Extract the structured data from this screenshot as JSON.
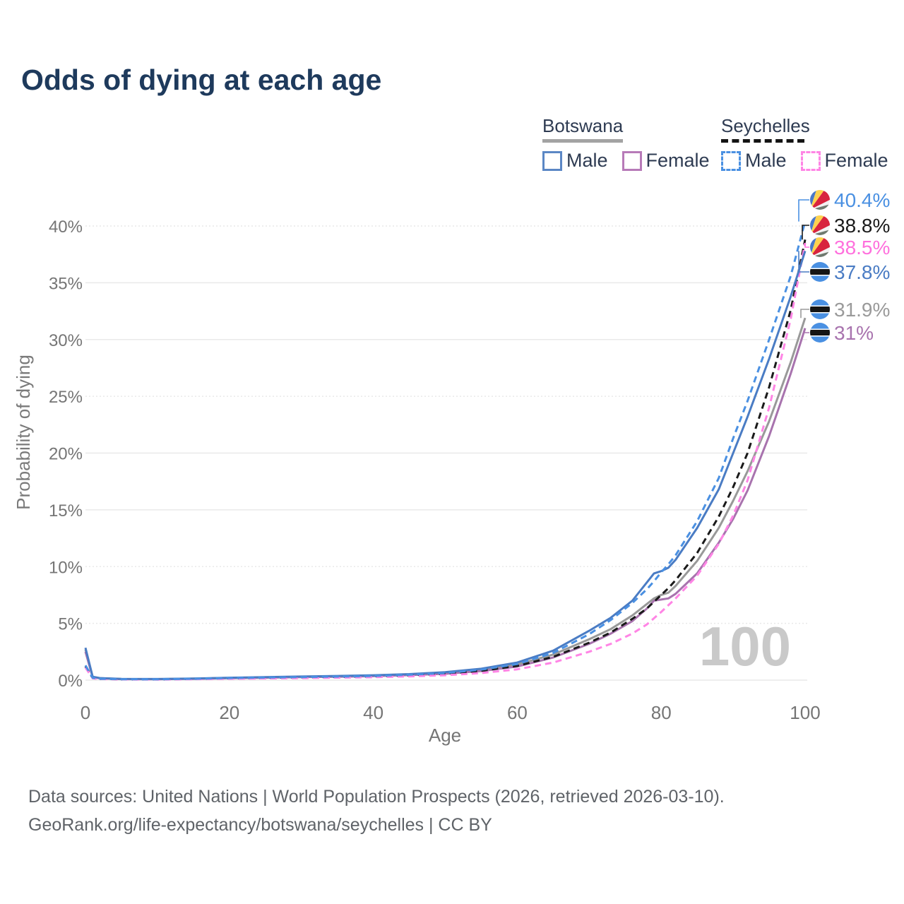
{
  "title": "Odds of dying at each age",
  "watermark_age": "100",
  "legend": {
    "botswana": {
      "label": "Botswana",
      "male_label": "Male",
      "female_label": "Female",
      "total_line_color": "#a3a3a3",
      "male_color": "#5b87c5",
      "female_color": "#b77ab8",
      "line_style": "solid"
    },
    "seychelles": {
      "label": "Seychelles",
      "male_label": "Male",
      "female_label": "Female",
      "total_line_color": "#141414",
      "male_color": "#4a90e2",
      "female_color": "#ff85e5",
      "line_style": "dashed"
    }
  },
  "end_labels": [
    {
      "value": "40.4%",
      "color": "#4a90e2",
      "flag": "seychelles-flag-icon",
      "series": "sc_male"
    },
    {
      "value": "38.8%",
      "color": "#1a1a1a",
      "flag": "seychelles-flag-icon",
      "series": "sc_total"
    },
    {
      "value": "38.5%",
      "color": "#ff70dd",
      "flag": "seychelles-flag-icon",
      "series": "sc_female"
    },
    {
      "value": "37.8%",
      "color": "#4a7cc4",
      "flag": "botswana-flag-icon",
      "series": "bw_male"
    },
    {
      "value": "31.9%",
      "color": "#9a9a9a",
      "flag": "botswana-flag-icon",
      "series": "bw_total"
    },
    {
      "value": "31%",
      "color": "#a873ae",
      "flag": "botswana-flag-icon",
      "series": "bw_female"
    }
  ],
  "footer": {
    "line1": "Data sources: United Nations | World Population Prospects (2026, retrieved 2026-03-10).",
    "line2": "GeoRank.org/life-expectancy/botswana/seychelles | CC BY"
  },
  "chart_data": {
    "type": "line",
    "title": "Odds of dying at each age",
    "xlabel": "Age",
    "ylabel": "Probability of dying",
    "x_ticks": [
      0,
      20,
      40,
      60,
      80,
      100
    ],
    "y_ticks_pct": [
      0,
      5,
      10,
      15,
      20,
      25,
      30,
      35,
      40
    ],
    "xlim": [
      0,
      100
    ],
    "ylim_pct": [
      0,
      42
    ],
    "grid": true,
    "legend_position": "top-right",
    "x": [
      0,
      1,
      2,
      5,
      10,
      15,
      20,
      25,
      30,
      35,
      40,
      45,
      50,
      55,
      60,
      65,
      70,
      73,
      76,
      78,
      79,
      80,
      81,
      82,
      85,
      88,
      90,
      92,
      95,
      98,
      100
    ],
    "series": [
      {
        "id": "bw_total",
        "name": "Botswana (both sexes)",
        "color": "#999999",
        "dash": "solid",
        "values": [
          2.7,
          0.29,
          0.17,
          0.1,
          0.09,
          0.13,
          0.19,
          0.24,
          0.29,
          0.33,
          0.39,
          0.48,
          0.62,
          0.9,
          1.38,
          2.25,
          3.6,
          4.5,
          5.7,
          6.7,
          7.2,
          7.5,
          7.7,
          8.3,
          10.5,
          13.4,
          15.8,
          18.4,
          22.8,
          28.0,
          31.9
        ]
      },
      {
        "id": "bw_female",
        "name": "Botswana Female",
        "color": "#a873ae",
        "dash": "solid",
        "values": [
          2.5,
          0.27,
          0.16,
          0.09,
          0.08,
          0.11,
          0.17,
          0.21,
          0.26,
          0.3,
          0.35,
          0.44,
          0.56,
          0.8,
          1.2,
          2.0,
          3.2,
          4.1,
          5.2,
          6.3,
          7.0,
          7.1,
          7.2,
          7.6,
          9.4,
          12.1,
          14.2,
          16.7,
          21.5,
          27.0,
          31.0
        ]
      },
      {
        "id": "sc_total",
        "name": "Seychelles (both sexes)",
        "color": "#1a1a1a",
        "dash": "dashed",
        "values": [
          1.2,
          0.18,
          0.11,
          0.07,
          0.06,
          0.11,
          0.16,
          0.2,
          0.24,
          0.28,
          0.33,
          0.42,
          0.56,
          0.82,
          1.25,
          2.05,
          3.3,
          4.2,
          5.4,
          6.3,
          6.9,
          7.5,
          8.1,
          8.8,
          11.2,
          14.4,
          17.0,
          20.0,
          25.8,
          32.6,
          38.8
        ]
      },
      {
        "id": "sc_female",
        "name": "Seychelles Female",
        "color": "#ff85e5",
        "dash": "dashed",
        "values": [
          1.1,
          0.16,
          0.1,
          0.06,
          0.05,
          0.08,
          0.12,
          0.15,
          0.18,
          0.22,
          0.26,
          0.33,
          0.43,
          0.62,
          0.95,
          1.55,
          2.5,
          3.2,
          4.1,
          4.9,
          5.45,
          6.0,
          6.6,
          7.2,
          9.2,
          12.0,
          14.5,
          17.6,
          24.0,
          31.8,
          38.5
        ]
      },
      {
        "id": "bw_male",
        "name": "Botswana Male",
        "color": "#4a7cc4",
        "dash": "solid",
        "values": [
          2.85,
          0.3,
          0.18,
          0.11,
          0.1,
          0.14,
          0.21,
          0.27,
          0.32,
          0.37,
          0.43,
          0.53,
          0.7,
          1.0,
          1.55,
          2.6,
          4.35,
          5.5,
          7.0,
          8.6,
          9.4,
          9.6,
          9.9,
          10.6,
          13.4,
          16.8,
          20.0,
          23.2,
          28.3,
          33.8,
          37.8
        ]
      },
      {
        "id": "sc_male",
        "name": "Seychelles Male",
        "color": "#4a90e2",
        "dash": "dashed",
        "values": [
          1.3,
          0.2,
          0.12,
          0.08,
          0.07,
          0.12,
          0.18,
          0.23,
          0.27,
          0.31,
          0.37,
          0.47,
          0.62,
          0.92,
          1.42,
          2.4,
          4.05,
          5.3,
          6.8,
          8.0,
          8.7,
          9.5,
          10.2,
          11.0,
          14.0,
          17.8,
          21.3,
          24.6,
          30.0,
          35.6,
          40.4
        ]
      }
    ],
    "end_values_pct": {
      "sc_male": 40.4,
      "sc_total": 38.8,
      "sc_female": 38.5,
      "bw_male": 37.8,
      "bw_total": 31.9,
      "bw_female": 31.0
    }
  }
}
